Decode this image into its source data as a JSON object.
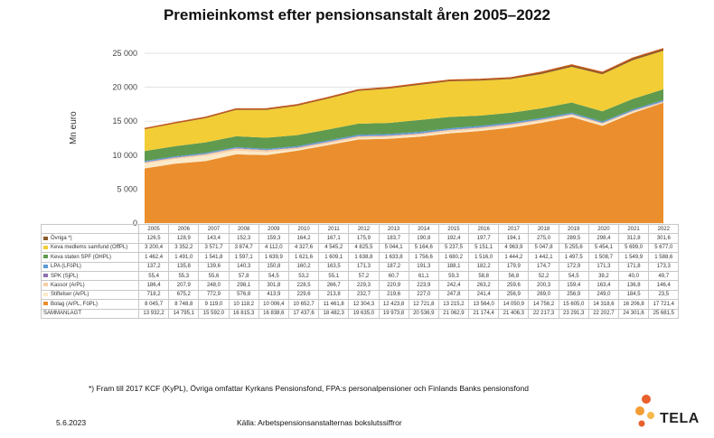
{
  "title": "Premieinkomst efter pensionsanstalt åren  2005–2022",
  "footnote": "*) Fram till 2017 KCF (KyPL), Övriga omfattar Kyrkans Pensionsfond, FPA:s personalpensioner och Finlands Banks pensionsfond",
  "date": "5.6.2023",
  "source": "Källa: Arbetspensionsanstalternas bokslutssiffror",
  "logo": {
    "text": "TELA"
  },
  "chart_data": {
    "type": "area",
    "stacked": true,
    "ylabel": "Mn euro",
    "ylim": [
      0,
      25000
    ],
    "yticks": [
      0,
      5000,
      10000,
      15000,
      20000,
      25000
    ],
    "ytick_labels": [
      "0",
      "5 000",
      "10 000",
      "15 000",
      "20 000",
      "25 000"
    ],
    "grid": true,
    "years": [
      "2005",
      "2006",
      "2007",
      "2008",
      "2009",
      "2010",
      "2011",
      "2012",
      "2013",
      "2014",
      "2015",
      "2016",
      "2017",
      "2018",
      "2019",
      "2020",
      "2021",
      "2022"
    ],
    "series": [
      {
        "name": "Övriga *)",
        "color": "#8b5a2b",
        "values": [
          126.5,
          128.9,
          143.4,
          152.3,
          159.3,
          164.2,
          167.1,
          175.9,
          183.7,
          190.8,
          192.4,
          197.7,
          194.1,
          275.0,
          289.5,
          298.4,
          312.8,
          301.6
        ],
        "labels": [
          "126,5",
          "128,9",
          "143,4",
          "152,3",
          "159,3",
          "164,2",
          "167,1",
          "175,9",
          "183,7",
          "190,8",
          "192,4",
          "197,7",
          "194,1",
          "275,0",
          "289,5",
          "298,4",
          "312,8",
          "301,6"
        ]
      },
      {
        "name": "Keva medlems samfund (OffPL)",
        "color": "#f2cd36",
        "values": [
          3200.4,
          3352.2,
          3571.7,
          3874.7,
          4112.0,
          4327.6,
          4545.2,
          4825.5,
          5044.1,
          5164.6,
          5237.5,
          5151.1,
          4963.9,
          5047.8,
          5255.6,
          5454.1,
          5699.0,
          5677.0
        ],
        "labels": [
          "3 200,4",
          "3 352,2",
          "3 571,7",
          "3 874,7",
          "4 112,0",
          "4 327,6",
          "4 545,2",
          "4 825,5",
          "5 044,1",
          "5 164,6",
          "5 237,5",
          "5 151,1",
          "4 963,9",
          "5 047,8",
          "5 255,6",
          "5 454,1",
          "5 699,0",
          "5 677,0"
        ]
      },
      {
        "name": "Keva staten SPF (OHPL)",
        "color": "#5f9a4f",
        "values": [
          1462.4,
          1491.0,
          1541.8,
          1597.1,
          1639.9,
          1621.6,
          1609.1,
          1638.8,
          1633.8,
          1756.6,
          1680.2,
          1516.0,
          1444.2,
          1442.1,
          1497.5,
          1508.7,
          1549.9,
          1588.6
        ],
        "labels": [
          "1 462,4",
          "1 491,0",
          "1 541,8",
          "1 597,1",
          "1 639,9",
          "1 621,6",
          "1 609,1",
          "1 638,8",
          "1 633,8",
          "1 756,6",
          "1 680,2",
          "1 516,0",
          "1 444,2",
          "1 442,1",
          "1 497,5",
          "1 508,7",
          "1 549,9",
          "1 588,6"
        ]
      },
      {
        "name": "LPA (LFöPL)",
        "color": "#5b9bd5",
        "values": [
          137.2,
          135.8,
          139.6,
          140.3,
          150.8,
          160.2,
          163.5,
          171.3,
          187.2,
          191.3,
          188.1,
          182.2,
          179.9,
          174.7,
          172.9,
          171.3,
          171.8,
          173.3
        ],
        "labels": [
          "137,2",
          "135,8",
          "139,6",
          "140,3",
          "150,8",
          "160,2",
          "163,5",
          "171,3",
          "187,2",
          "191,3",
          "188,1",
          "182,2",
          "179,9",
          "174,7",
          "172,9",
          "171,3",
          "171,8",
          "173,3"
        ]
      },
      {
        "name": "SPK (SjPL)",
        "color": "#8e6fb0",
        "values": [
          55.4,
          55.3,
          55.6,
          57.8,
          54.5,
          53.2,
          55.1,
          57.2,
          60.7,
          61.1,
          59.3,
          58.8,
          56.8,
          52.2,
          54.5,
          39.2,
          40.0,
          49.7
        ],
        "labels": [
          "55,4",
          "55,3",
          "55,6",
          "57,8",
          "54,5",
          "53,2",
          "55,1",
          "57,2",
          "60,7",
          "61,1",
          "59,3",
          "58,8",
          "56,8",
          "52,2",
          "54,5",
          "39,2",
          "40,0",
          "49,7"
        ]
      },
      {
        "name": "Kassor (ArPL)",
        "color": "#f6cfa8",
        "values": [
          186.4,
          207.9,
          248.0,
          298.1,
          301.8,
          228.5,
          266.7,
          229.3,
          220.9,
          223.9,
          242.4,
          263.2,
          259.6,
          200.3,
          159.4,
          163.4,
          136.8,
          146.4
        ],
        "labels": [
          "186,4",
          "207,9",
          "248,0",
          "298,1",
          "301,8",
          "228,5",
          "266,7",
          "229,3",
          "220,9",
          "223,9",
          "242,4",
          "263,2",
          "259,6",
          "200,3",
          "159,4",
          "163,4",
          "136,8",
          "146,4"
        ]
      },
      {
        "name": "Stiftelser (ArPL)",
        "color": "#fbe9c8",
        "values": [
          718.2,
          675.2,
          772.9,
          576.8,
          413.9,
          229.6,
          213.8,
          232.7,
          219.6,
          227.0,
          247.8,
          241.4,
          256.9,
          269.0,
          256.9,
          249.0,
          184.5,
          23.5
        ],
        "labels": [
          "718,2",
          "675,2",
          "772,9",
          "576,8",
          "413,9",
          "229,6",
          "213,8",
          "232,7",
          "219,6",
          "227,0",
          "247,8",
          "241,4",
          "256,9",
          "269,0",
          "256,9",
          "249,0",
          "184,5",
          "23,5"
        ]
      },
      {
        "name": "Bolag (ArPL, FöPL)",
        "color": "#eb8e2e",
        "values": [
          8045.7,
          8748.8,
          9119.0,
          10118.2,
          10006.4,
          10652.7,
          11461.8,
          12304.3,
          12423.8,
          12721.8,
          13215.2,
          13564.0,
          14050.9,
          14756.2,
          15605.0,
          14318.6,
          16206.8,
          17721.4
        ],
        "labels": [
          "8 045,7",
          "8 748,8",
          "9 119,0",
          "10 118,2",
          "10 006,4",
          "10 652,7",
          "11 461,8",
          "12 304,3",
          "12 423,8",
          "12 721,8",
          "13 215,2",
          "13 564,0",
          "14 050,9",
          "14 756,2",
          "15 605,0",
          "14 318,6",
          "16 206,8",
          "17 721,4"
        ]
      }
    ],
    "stack_order_bottom_to_top": [
      7,
      6,
      5,
      4,
      3,
      2,
      1,
      0
    ],
    "totals": {
      "name": "SAMMANLAGT",
      "values": [
        13932.2,
        14795.1,
        15592.0,
        16815.3,
        16838.6,
        17437.6,
        18482.3,
        19635.0,
        19973.8,
        20536.9,
        21062.9,
        21174.4,
        21406.3,
        22217.3,
        23291.3,
        22202.7,
        24301.6,
        25681.5
      ],
      "labels": [
        "13 932,2",
        "14 795,1",
        "15 592,0",
        "16 815,3",
        "16 838,6",
        "17 437,6",
        "18 482,3",
        "19 635,0",
        "19 973,8",
        "20 536,9",
        "21 062,9",
        "21 174,4",
        "21 406,3",
        "22 217,3",
        "23 291,3",
        "22 202,7",
        "24 301,6",
        "25 681,5"
      ]
    }
  }
}
